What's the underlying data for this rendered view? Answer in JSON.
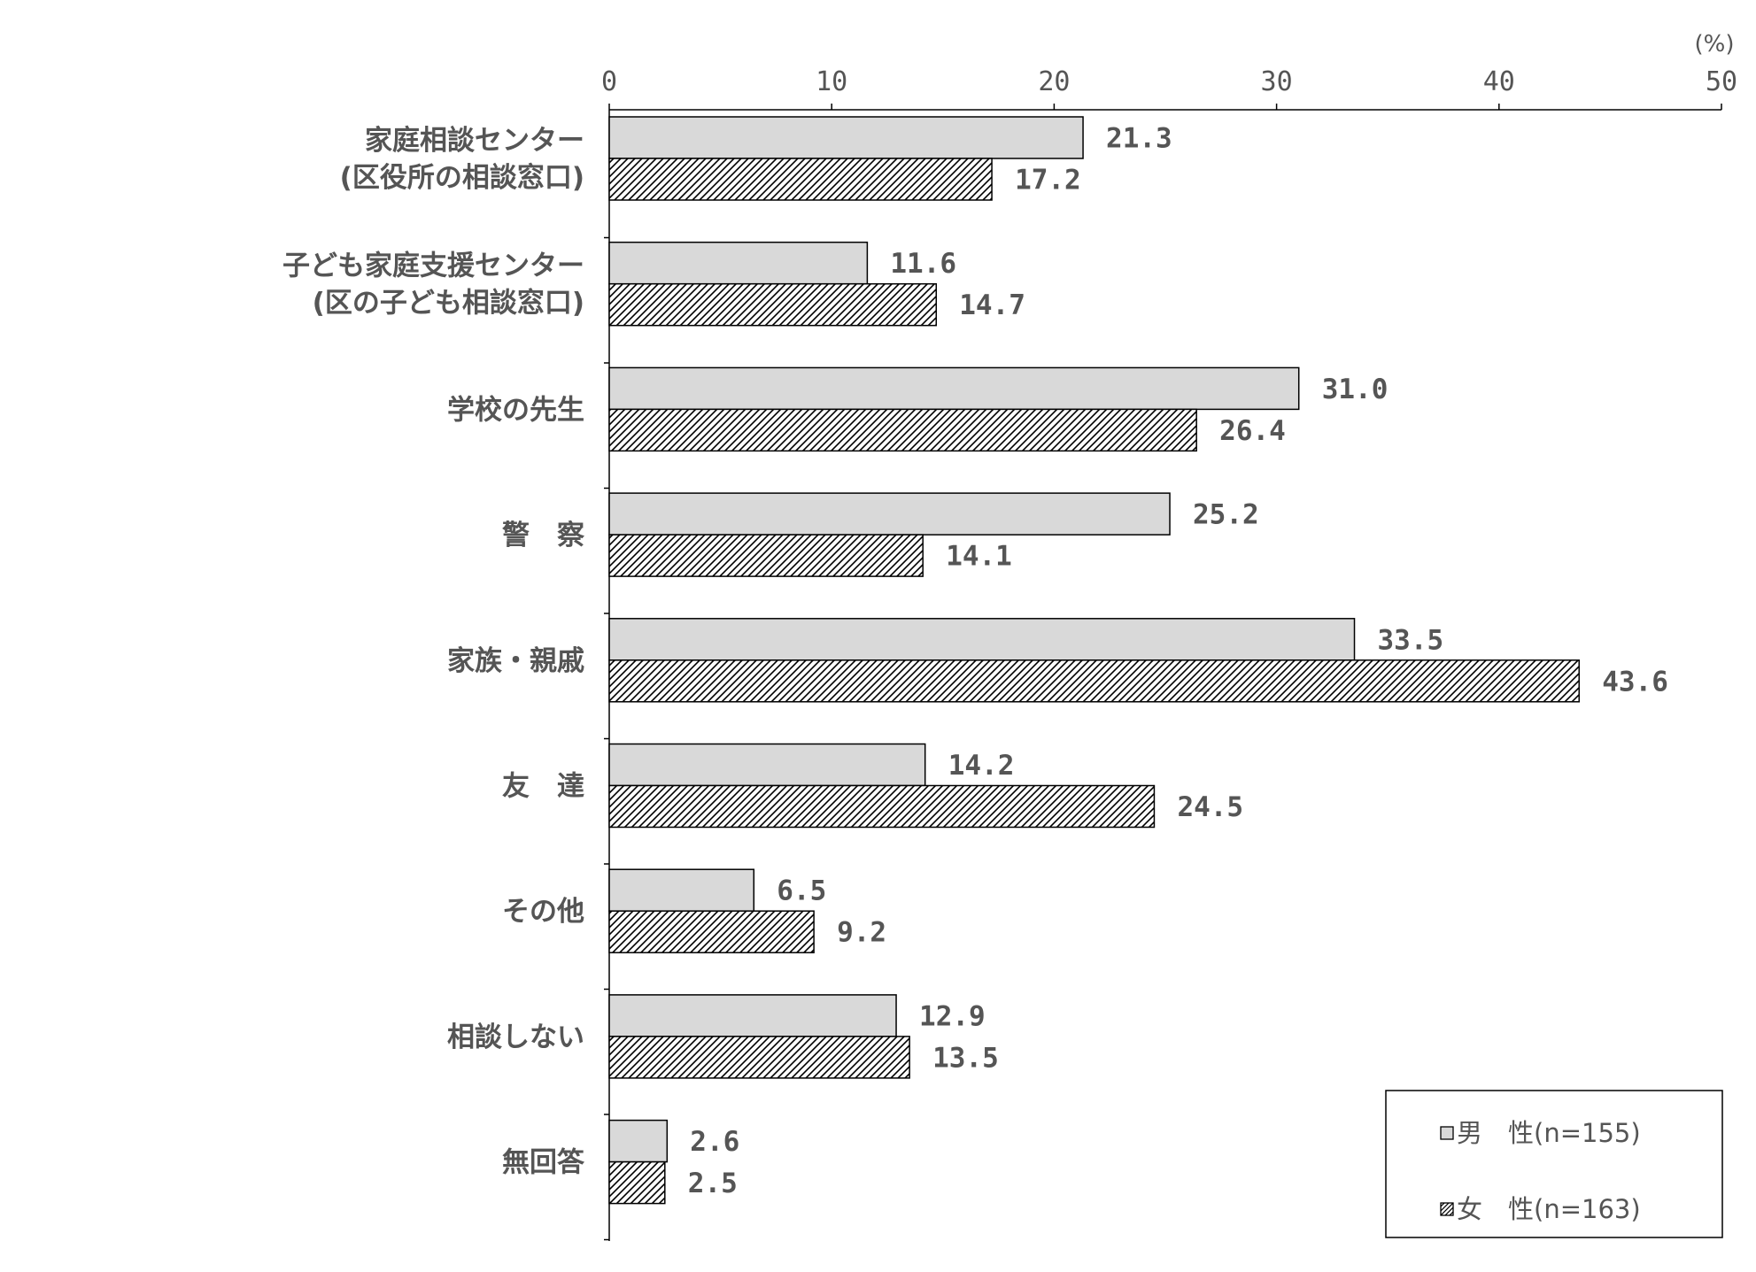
{
  "chart_data": {
    "type": "bar",
    "orientation": "horizontal",
    "unit": "(%)",
    "xlim": [
      0,
      50
    ],
    "ticks": [
      "0",
      "10",
      "20",
      "30",
      "40",
      "50"
    ],
    "grid": false,
    "legend_position": "bottom-right",
    "categories": [
      [
        "家庭相談センター",
        "(区役所の相談窓口)"
      ],
      [
        "子ども家庭支援センター",
        "(区の子ども相談窓口)"
      ],
      [
        "学校の先生"
      ],
      [
        "警　察"
      ],
      [
        "家族・親戚"
      ],
      [
        "友　達"
      ],
      [
        "その他"
      ],
      [
        "相談しない"
      ],
      [
        "無回答"
      ]
    ],
    "series": [
      {
        "name": "男　性(n=155)",
        "fill": "solid",
        "color": "#d9d9d9",
        "values": [
          21.3,
          11.6,
          31.0,
          25.2,
          33.5,
          14.2,
          6.5,
          12.9,
          2.6
        ],
        "labels": [
          "21.3",
          "11.6",
          "31.0",
          "25.2",
          "33.5",
          "14.2",
          "6.5",
          "12.9",
          "2.6"
        ]
      },
      {
        "name": "女　性(n=163)",
        "fill": "diagonal-hatch",
        "color": "#000000",
        "values": [
          17.2,
          14.7,
          26.4,
          14.1,
          43.6,
          24.5,
          9.2,
          13.5,
          2.5
        ],
        "labels": [
          "17.2",
          "14.7",
          "26.4",
          "14.1",
          "43.6",
          "24.5",
          "9.2",
          "13.5",
          "2.5"
        ]
      }
    ]
  }
}
